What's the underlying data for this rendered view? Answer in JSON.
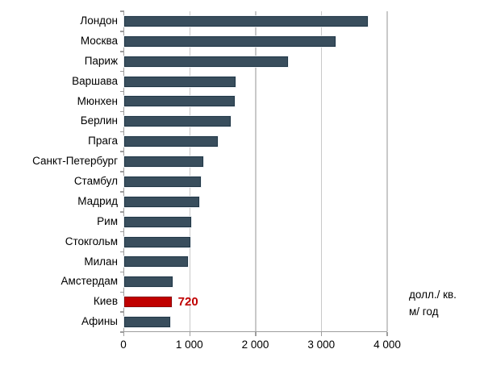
{
  "chart_data": {
    "type": "bar",
    "orientation": "horizontal",
    "title": "",
    "xlabel": "",
    "ylabel": "",
    "unit_label_lines": [
      "долл./ кв.",
      "м/ год"
    ],
    "categories": [
      "Лондон",
      "Москва",
      "Париж",
      "Варшава",
      "Мюнхен",
      "Берлин",
      "Прага",
      "Санкт-Петербург",
      "Стамбул",
      "Мадрид",
      "Рим",
      "Стокгольм",
      "Милан",
      "Амстердам",
      "Киев",
      "Афины"
    ],
    "values": [
      3710,
      3220,
      2490,
      1695,
      1685,
      1620,
      1420,
      1200,
      1170,
      1140,
      1020,
      1000,
      970,
      740,
      720,
      700
    ],
    "xlim": [
      0,
      4000
    ],
    "x_ticks": [
      0,
      1000,
      2000,
      3000,
      4000
    ],
    "x_tick_labels": [
      "0",
      "1 000",
      "2 000",
      "3 000",
      "4 000"
    ],
    "grid": true,
    "legend": false,
    "highlight": {
      "category": "Киев",
      "value_label": "720",
      "color": "#c00000",
      "border_color": "#8f0000"
    },
    "bar_color": "#394e5d",
    "bar_border_color": "#203645"
  },
  "colors": {
    "background": "#ffffff",
    "axis": "#9d9d9d",
    "gridline": "#c9c9c9",
    "text": "#000000",
    "highlight_red": "#c00000"
  }
}
